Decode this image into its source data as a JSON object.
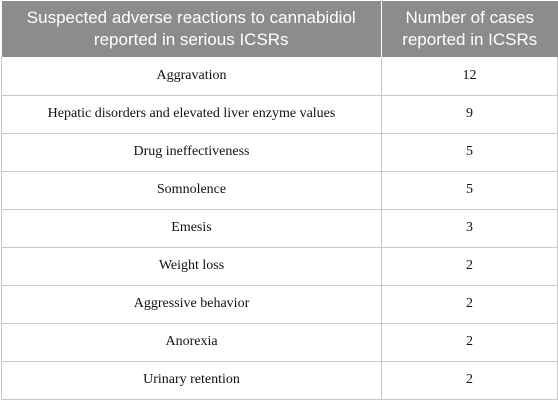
{
  "table": {
    "headers": [
      "Suspected adverse reactions to cannabidiol reported in serious ICSRs",
      "Number of cases reported in ICSRs"
    ],
    "rows": [
      [
        "Aggravation",
        "12"
      ],
      [
        "Hepatic disorders and elevated liver enzyme values",
        "9"
      ],
      [
        "Drug ineffectiveness",
        "5"
      ],
      [
        "Somnolence",
        "5"
      ],
      [
        "Emesis",
        "3"
      ],
      [
        "Weight loss",
        "2"
      ],
      [
        "Aggressive behavior",
        "2"
      ],
      [
        "Anorexia",
        "2"
      ],
      [
        "Urinary retention",
        "2"
      ]
    ]
  },
  "colors": {
    "header_bg": "#8c8c8c",
    "header_text": "#ffffff",
    "border": "#c8c8c8"
  }
}
